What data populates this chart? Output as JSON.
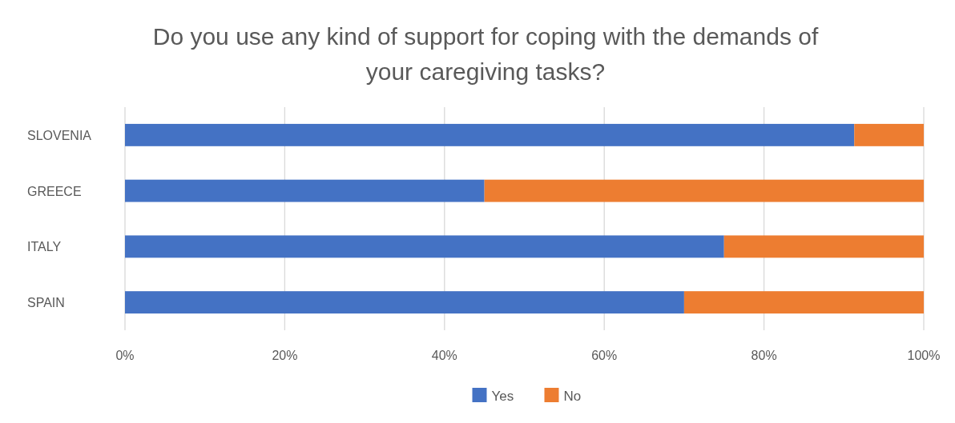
{
  "chart_data": {
    "type": "bar",
    "orientation": "horizontal",
    "stacked": true,
    "title": "Do you use any kind of support for coping with the demands of your caregiving tasks?",
    "categories": [
      "SLOVENIA",
      "GREECE",
      "ITALY",
      "SPAIN"
    ],
    "series": [
      {
        "name": "Yes",
        "color": "#4472c4",
        "values": [
          91.3,
          45,
          75,
          70
        ]
      },
      {
        "name": "No",
        "color": "#ed7d31",
        "values": [
          8.7,
          55,
          25,
          30
        ]
      }
    ],
    "xlim": [
      0,
      100
    ],
    "xticks": [
      {
        "value": 0,
        "label": "0%"
      },
      {
        "value": 20,
        "label": "20%"
      },
      {
        "value": 40,
        "label": "40%"
      },
      {
        "value": 60,
        "label": "60%"
      },
      {
        "value": 80,
        "label": "80%"
      },
      {
        "value": 100,
        "label": "100%"
      }
    ],
    "grid": "x",
    "legend": "bottom"
  }
}
